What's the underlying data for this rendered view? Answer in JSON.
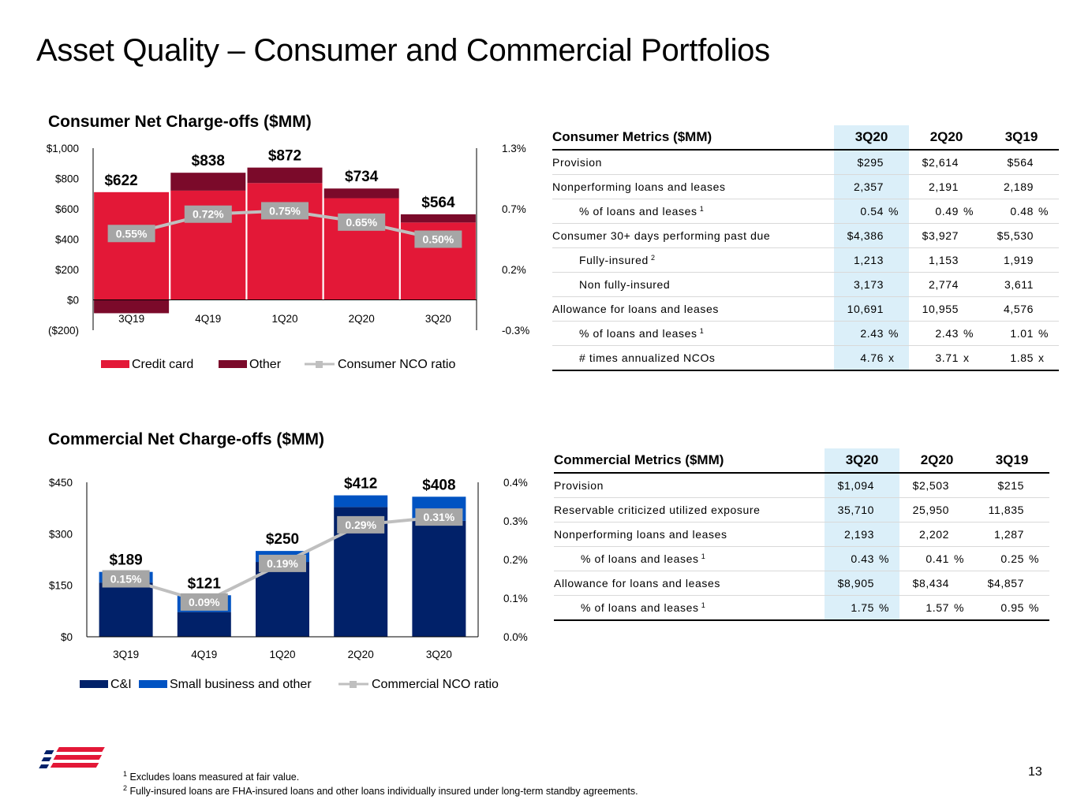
{
  "title": "Asset Quality – Consumer and Commercial Portfolios",
  "consumer_chart_title": "Consumer Net Charge-offs ($MM)",
  "commercial_chart_title": "Commercial Net Charge-offs ($MM)",
  "chart_data": [
    {
      "type": "bar",
      "stacked": true,
      "categories": [
        "3Q19",
        "4Q19",
        "1Q20",
        "2Q20",
        "3Q20"
      ],
      "series": [
        {
          "name": "Credit card",
          "values": [
            710,
            720,
            770,
            670,
            510
          ],
          "color": "#e31837"
        },
        {
          "name": "Other",
          "values": [
            -88,
            118,
            102,
            64,
            54
          ],
          "color": "#7b0a2a"
        },
        {
          "name": "Consumer NCO ratio",
          "kind": "line",
          "axis": "right",
          "values": [
            0.55,
            0.72,
            0.75,
            0.65,
            0.5
          ],
          "color": "#bfbfbf"
        }
      ],
      "total_labels": [
        "$622",
        "$838",
        "$872",
        "$734",
        "$564"
      ],
      "ratio_labels": [
        "0.55%",
        "0.72%",
        "0.75%",
        "0.65%",
        "0.50%"
      ],
      "y_ticks": [
        "$1,000",
        "$800",
        "$600",
        "$400",
        "$200",
        "$0",
        "($200)"
      ],
      "y2_ticks": [
        "1.3%",
        "0.7%",
        "0.2%",
        "-0.3%"
      ],
      "ylim": [
        -200,
        1000
      ],
      "y2lim": [
        -0.3,
        1.3
      ],
      "legend": [
        "Credit card",
        "Other",
        "Consumer NCO ratio"
      ]
    },
    {
      "type": "bar",
      "stacked": true,
      "categories": [
        "3Q19",
        "4Q19",
        "1Q20",
        "2Q20",
        "3Q20"
      ],
      "series": [
        {
          "name": "C&I",
          "values": [
            158,
            72,
            218,
            378,
            338
          ],
          "color": "#012169"
        },
        {
          "name": "Small business and other",
          "values": [
            31,
            49,
            32,
            34,
            70
          ],
          "color": "#0053c2"
        },
        {
          "name": "Commercial NCO ratio",
          "kind": "line",
          "axis": "right",
          "values": [
            0.15,
            0.09,
            0.19,
            0.29,
            0.31
          ],
          "color": "#bfbfbf"
        }
      ],
      "total_labels": [
        "$189",
        "$121",
        "$250",
        "$412",
        "$408"
      ],
      "ratio_labels": [
        "0.15%",
        "0.09%",
        "0.19%",
        "0.29%",
        "0.31%"
      ],
      "y_ticks": [
        "$450",
        "$300",
        "$150",
        "$0"
      ],
      "y2_ticks": [
        "0.4%",
        "0.3%",
        "0.2%",
        "0.1%",
        "0.0%"
      ],
      "ylim": [
        0,
        450
      ],
      "y2lim": [
        0,
        0.4
      ],
      "legend": [
        "C&I",
        "Small business and other",
        "Commercial NCO ratio"
      ]
    }
  ],
  "consumer_table": {
    "headers": [
      "Consumer Metrics ($MM)",
      "3Q20",
      "2Q20",
      "3Q19"
    ],
    "rows": [
      {
        "label": "Provision",
        "indent": false,
        "sup": "",
        "vals": [
          "$295",
          "$2,614",
          "$564"
        ],
        "unit": ""
      },
      {
        "label": "Nonperforming loans and leases",
        "indent": false,
        "sup": "",
        "vals": [
          "2,357",
          "2,191",
          "2,189"
        ],
        "unit": ""
      },
      {
        "label": "% of loans and leases",
        "indent": true,
        "sup": "1",
        "vals": [
          "0.54",
          "0.49",
          "0.48"
        ],
        "unit": "%"
      },
      {
        "label": "Consumer 30+ days performing past due",
        "indent": false,
        "sup": "",
        "vals": [
          "$4,386",
          "$3,927",
          "$5,530"
        ],
        "unit": ""
      },
      {
        "label": "Fully-insured",
        "indent": true,
        "sup": "2",
        "vals": [
          "1,213",
          "1,153",
          "1,919"
        ],
        "unit": ""
      },
      {
        "label": "Non fully-insured",
        "indent": true,
        "sup": "",
        "vals": [
          "3,173",
          "2,774",
          "3,611"
        ],
        "unit": ""
      },
      {
        "label": "Allowance for loans and leases",
        "indent": false,
        "sup": "",
        "vals": [
          "10,691",
          "10,955",
          "4,576"
        ],
        "unit": ""
      },
      {
        "label": "% of loans and leases",
        "indent": true,
        "sup": "1",
        "vals": [
          "2.43",
          "2.43",
          "1.01"
        ],
        "unit": "%"
      },
      {
        "label": "# times annualized NCOs",
        "indent": true,
        "sup": "",
        "vals": [
          "4.76",
          "3.71",
          "1.85"
        ],
        "unit": "x"
      }
    ]
  },
  "commercial_table": {
    "headers": [
      "Commercial Metrics ($MM)",
      "3Q20",
      "2Q20",
      "3Q19"
    ],
    "rows": [
      {
        "label": "Provision",
        "indent": false,
        "sup": "",
        "vals": [
          "$1,094",
          "$2,503",
          "$215"
        ],
        "unit": ""
      },
      {
        "label": "Reservable criticized utilized exposure",
        "indent": false,
        "sup": "",
        "vals": [
          "35,710",
          "25,950",
          "11,835"
        ],
        "unit": ""
      },
      {
        "label": "Nonperforming loans and leases",
        "indent": false,
        "sup": "",
        "vals": [
          "2,193",
          "2,202",
          "1,287"
        ],
        "unit": ""
      },
      {
        "label": "% of loans and leases",
        "indent": true,
        "sup": "1",
        "vals": [
          "0.43",
          "0.41",
          "0.25"
        ],
        "unit": "%"
      },
      {
        "label": "Allowance for loans and leases",
        "indent": false,
        "sup": "",
        "vals": [
          "$8,905",
          "$8,434",
          "$4,857"
        ],
        "unit": ""
      },
      {
        "label": "% of loans and leases",
        "indent": true,
        "sup": "1",
        "vals": [
          "1.75",
          "1.57",
          "0.95"
        ],
        "unit": "%"
      }
    ]
  },
  "footnotes": {
    "fn1_mark": "1",
    "fn1": "Excludes loans measured at fair value.",
    "fn2_mark": "2",
    "fn2": "Fully-insured loans are FHA-insured loans and other loans individually insured under long-term standby agreements."
  },
  "page_number": "13",
  "logo_icon": "bank-of-america-flag-logo"
}
